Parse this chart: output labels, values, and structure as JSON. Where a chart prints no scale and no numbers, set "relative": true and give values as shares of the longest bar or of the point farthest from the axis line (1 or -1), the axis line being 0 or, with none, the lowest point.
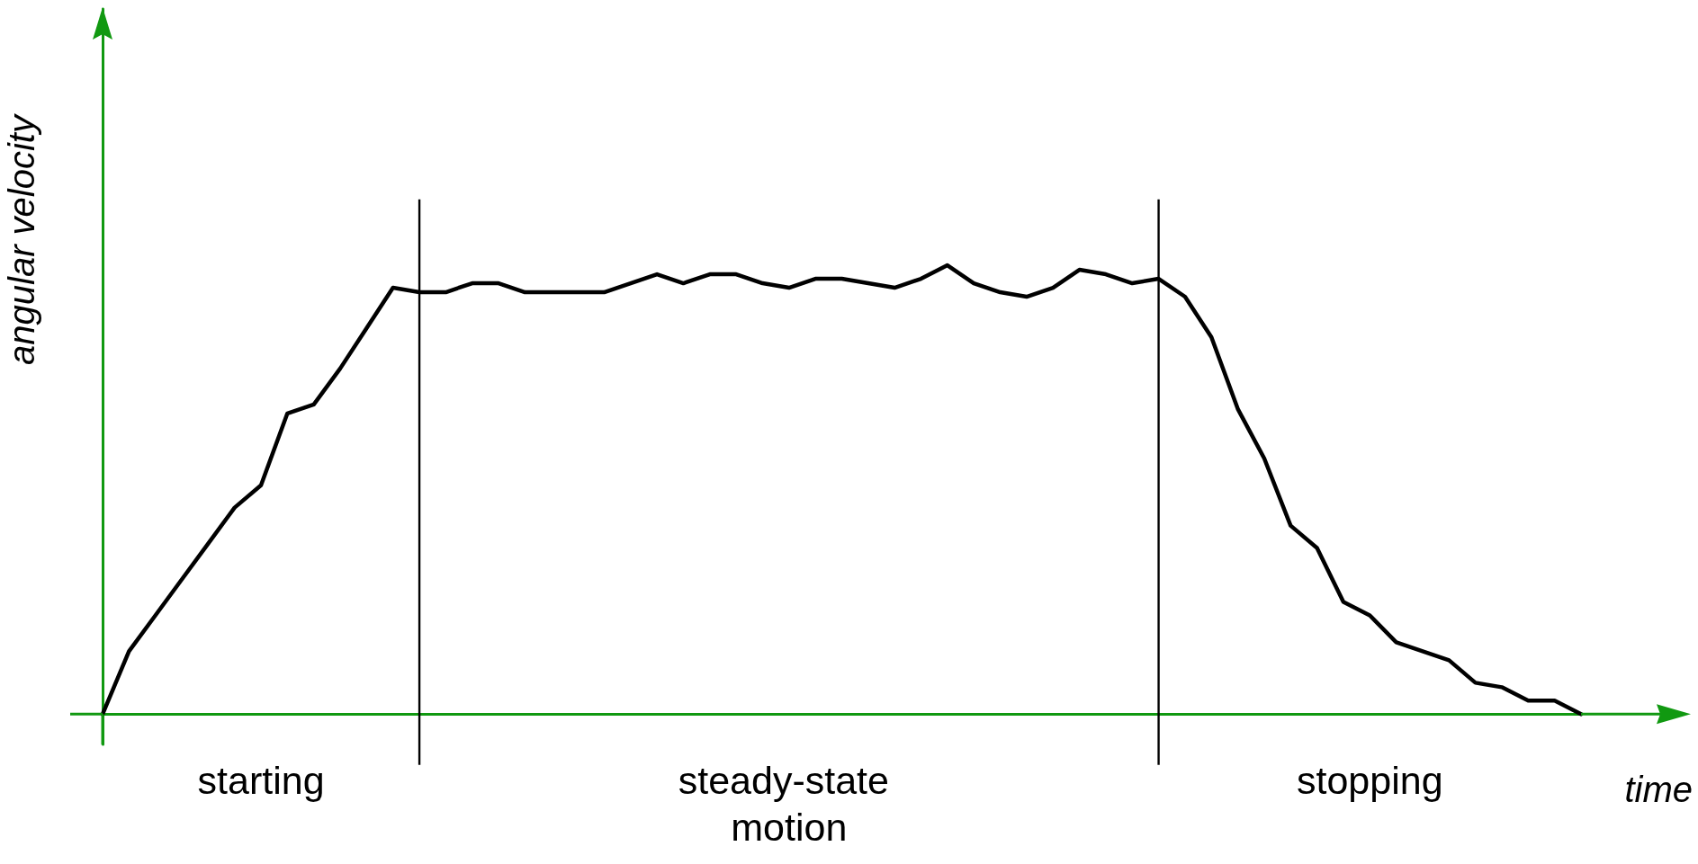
{
  "chart_data": {
    "type": "line",
    "relative": true,
    "xlabel": "time",
    "ylabel": "angular velocity",
    "grid": false,
    "marker": "none",
    "line_style": "solid",
    "categories": [
      null,
      null,
      null,
      null,
      null,
      null,
      null,
      null,
      null,
      null,
      null,
      null,
      null,
      null,
      null,
      null,
      null,
      null,
      null,
      null,
      null,
      null,
      null,
      null,
      null,
      null,
      null,
      null,
      null,
      null,
      null,
      null,
      null,
      null,
      null,
      null,
      null,
      null,
      null,
      null,
      null,
      null,
      null,
      null,
      null,
      null,
      null,
      null,
      null,
      null,
      null,
      null,
      null,
      null,
      null,
      null,
      null
    ],
    "series": [
      {
        "color": "#000000",
        "values": [
          0,
          0.14,
          0.22,
          0.3,
          0.38,
          0.46,
          0.51,
          0.67,
          0.69,
          0.77,
          0.86,
          0.95,
          0.94,
          0.94,
          0.96,
          0.96,
          0.94,
          0.94,
          0.94,
          0.94,
          0.96,
          0.98,
          0.96,
          0.98,
          0.98,
          0.96,
          0.95,
          0.97,
          0.97,
          0.96,
          0.95,
          0.97,
          1,
          0.96,
          0.94,
          0.93,
          0.95,
          0.99,
          0.98,
          0.96,
          0.97,
          0.93,
          0.84,
          0.68,
          0.57,
          0.42,
          0.37,
          0.25,
          0.22,
          0.16,
          0.14,
          0.12,
          0.07,
          0.06,
          0.03,
          0.03,
          0
        ]
      }
    ],
    "annotations": [
      "starting",
      "steady-state motion",
      "stopping"
    ]
  }
}
